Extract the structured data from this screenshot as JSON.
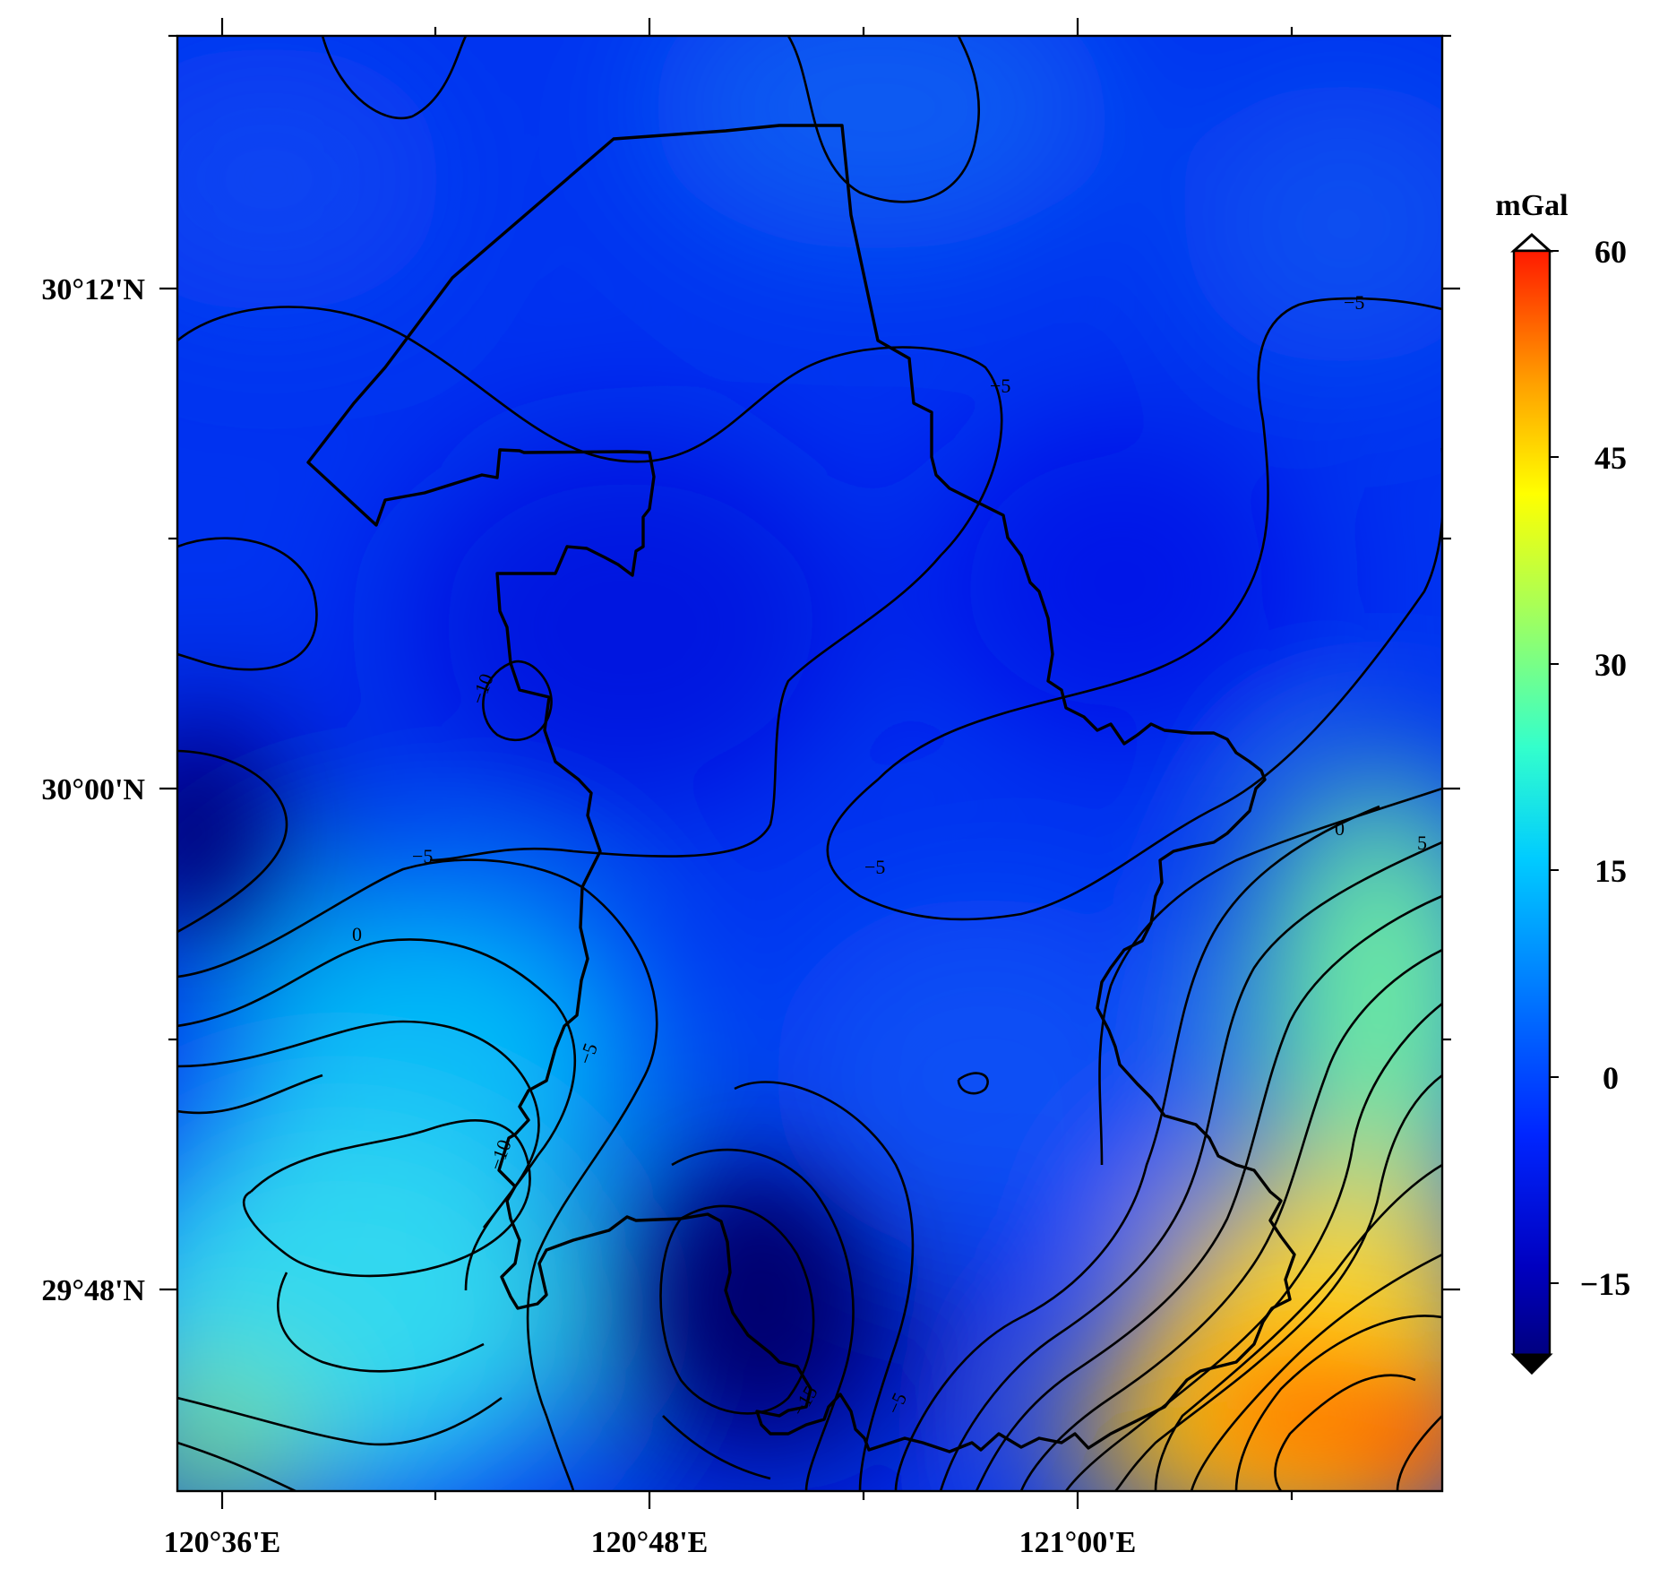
{
  "map": {
    "x_axis_labels": [
      "120°36'E",
      "120°48'E",
      "121°00'E"
    ],
    "y_axis_labels": [
      "30°12'N",
      "30°00'N",
      "29°48'N"
    ]
  },
  "colorbar": {
    "unit": "mGal",
    "tick_labels": [
      "60",
      "45",
      "30",
      "15",
      "0",
      "−15"
    ],
    "range": [
      -20,
      60
    ],
    "colors": [
      "#000080",
      "#0000c8",
      "#0033ff",
      "#0080ff",
      "#00ffff",
      "#7fff7f",
      "#ffff00",
      "#ff8000",
      "#ff0000"
    ]
  },
  "contour_labels": [
    "−5",
    "−5",
    "−10",
    "−5",
    "0",
    "−5",
    "−10",
    "−15",
    "−5",
    "−5",
    "0",
    "5"
  ]
}
